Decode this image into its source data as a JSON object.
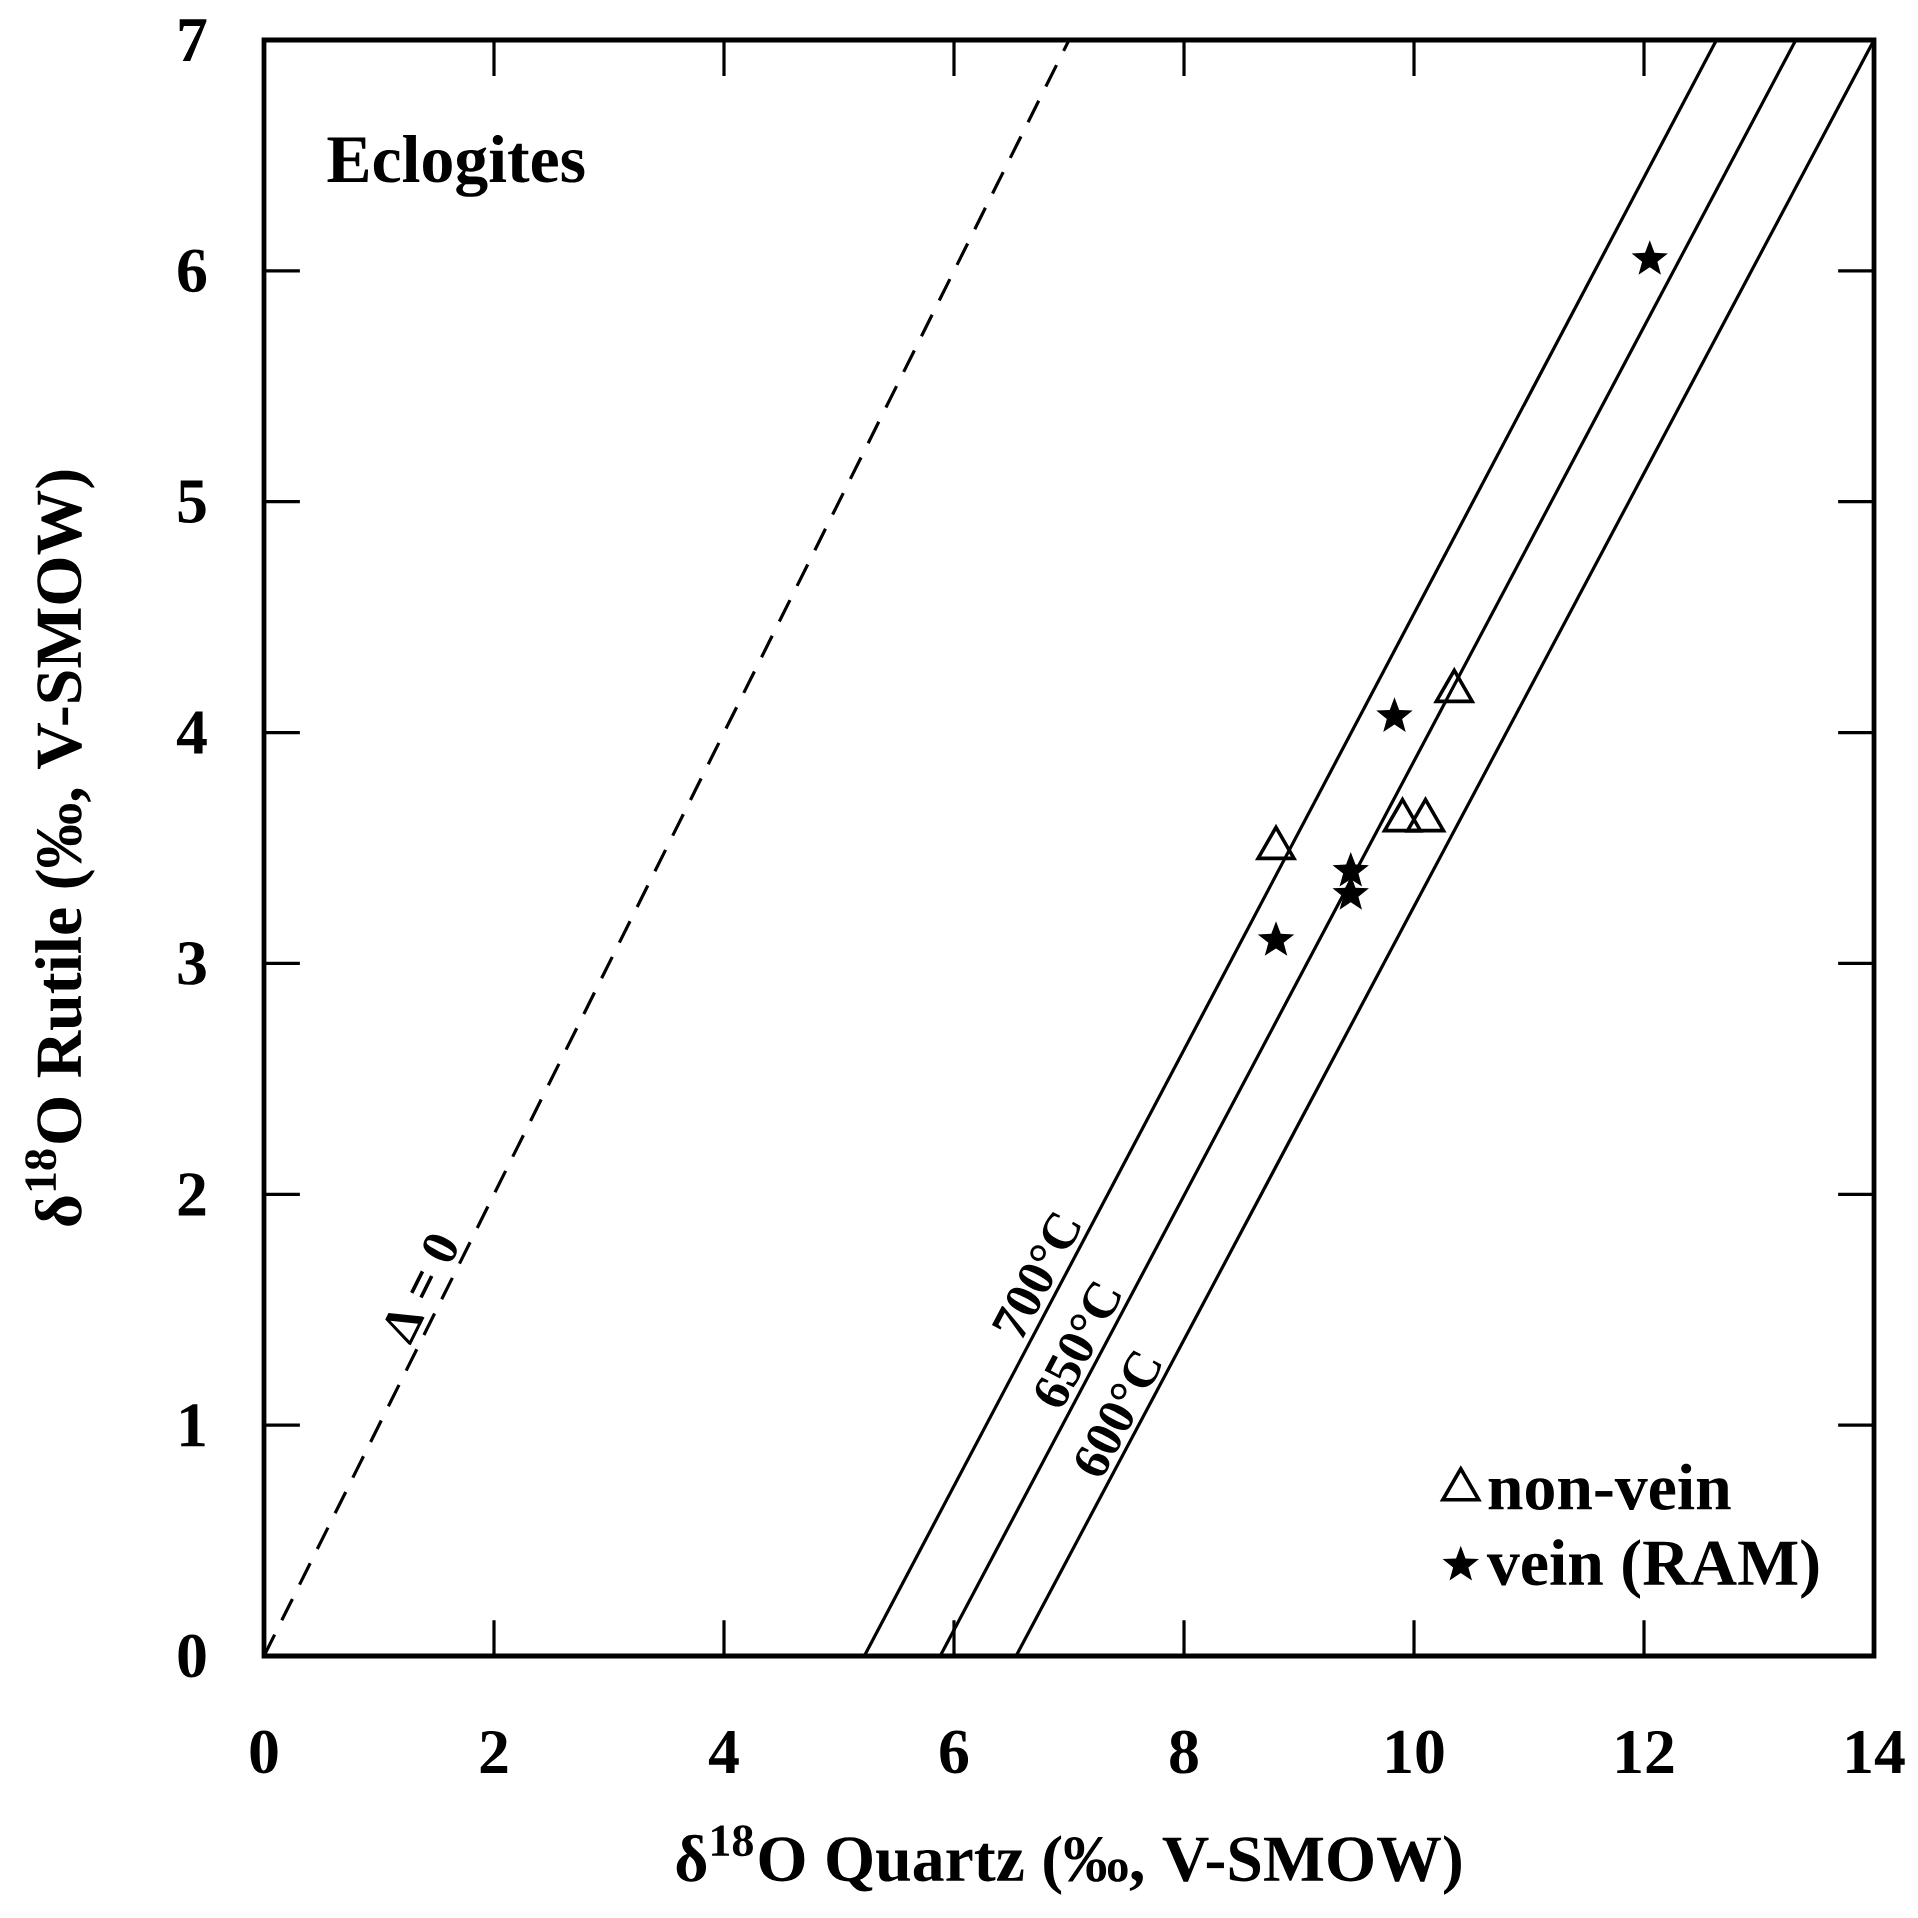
{
  "chart_data": {
    "type": "scatter",
    "xlabel": "δ$^{18}$O Quartz (‰, V-SMOW)",
    "ylabel": "δ$^{18}$O Rutile (‰, V-SMOW)",
    "xlim": [
      0,
      14
    ],
    "ylim": [
      0,
      7
    ],
    "xticks": [
      0,
      2,
      4,
      6,
      8,
      10,
      12,
      14
    ],
    "yticks": [
      0,
      1,
      2,
      3,
      4,
      5,
      6,
      7
    ],
    "grid": false,
    "legend": "bottom right",
    "series": [
      {
        "name": "non-vein",
        "marker": "triangle",
        "color": "#000000",
        "x": [
          8.8,
          9.9,
          10.1,
          10.35
        ],
        "values": [
          3.5,
          3.62,
          3.62,
          4.18
        ]
      },
      {
        "name": "vein (RAM)",
        "marker": "star",
        "color": "#000000",
        "x": [
          8.8,
          9.45,
          9.45,
          9.83,
          12.05
        ],
        "values": [
          3.1,
          3.4,
          3.3,
          4.07,
          6.05
        ]
      },
      {
        "type": "line",
        "line_style": "dashed",
        "color": "#000000",
        "x": [
          0,
          7
        ],
        "values": [
          0,
          7
        ]
      },
      {
        "type": "line",
        "line_style": "solid",
        "color": "#000000",
        "x": [
          5.22,
          12.63
        ],
        "values": [
          0,
          7
        ]
      },
      {
        "type": "line",
        "line_style": "solid",
        "color": "#000000",
        "x": [
          5.88,
          13.32
        ],
        "values": [
          0,
          7
        ]
      },
      {
        "type": "line",
        "line_style": "solid",
        "color": "#000000",
        "x": [
          6.54,
          14.0
        ],
        "values": [
          0,
          7
        ]
      }
    ],
    "annotations": [
      "Eclogites",
      {
        "text": "Δ = 0",
        "x": 1.55,
        "y": 1.55
      },
      {
        "text": "700°C",
        "x": 6.91,
        "y": 1.6
      },
      {
        "text": "650°C",
        "x": 7.26,
        "y": 1.3
      },
      {
        "text": "600°C",
        "x": 7.61,
        "y": 1.0
      }
    ]
  }
}
